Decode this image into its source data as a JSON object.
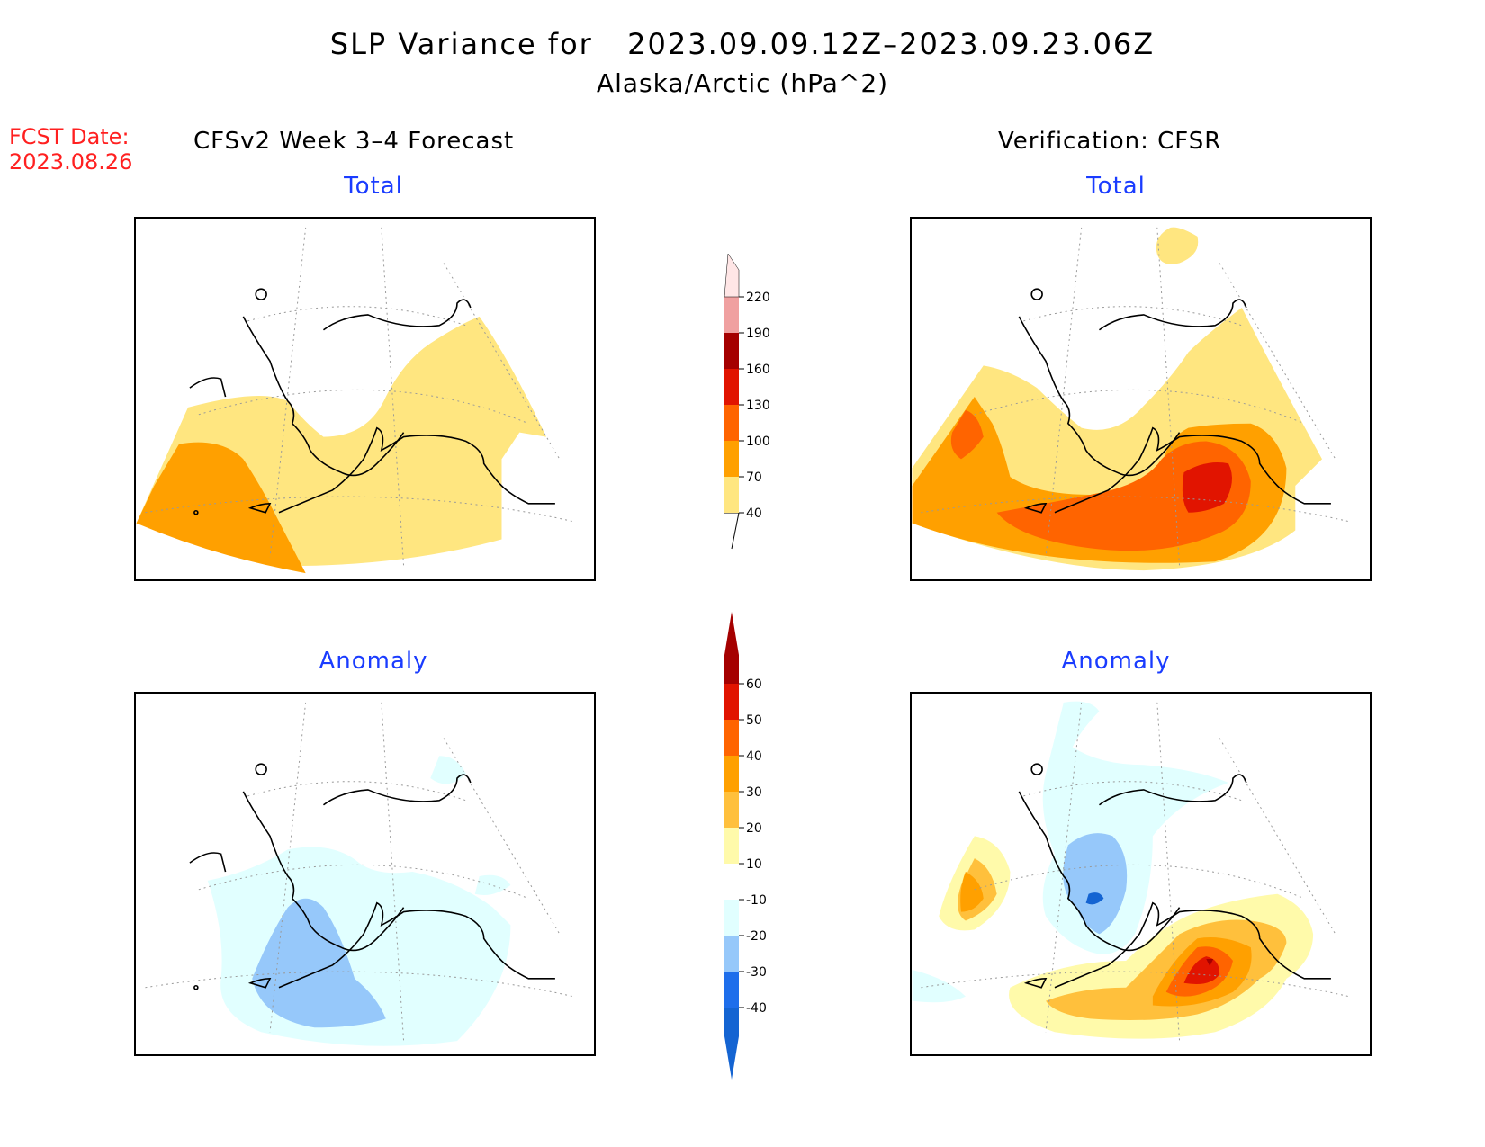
{
  "title": {
    "line1_prefix": "SLP Variance for",
    "line1_dates": "2023.09.09.12Z–2023.09.23.06Z",
    "line2": "Alaska/Arctic (hPa^2)"
  },
  "fcst_date": {
    "label": "FCST Date:",
    "value": "2023.08.26"
  },
  "left_header": "CFSv2 Week 3–4 Forecast",
  "right_header": "Verification: CFSR",
  "panels": {
    "forecast_total_title": "Total",
    "verif_total_title": "Total",
    "forecast_anom_title": "Anomaly",
    "verif_anom_title": "Anomaly"
  },
  "colorbar_total": {
    "ticks": [
      "40",
      "70",
      "100",
      "130",
      "160",
      "190",
      "220"
    ],
    "colors": [
      "#ffe680",
      "#ffa000",
      "#ff6400",
      "#e11400",
      "#a50000",
      "#f0a0a0",
      "#ffe6e6"
    ]
  },
  "colorbar_anomaly": {
    "ticks": [
      "-40",
      "-30",
      "-20",
      "-10",
      "10",
      "20",
      "30",
      "40",
      "50",
      "60"
    ],
    "colors": [
      "#1464d2",
      "#1e6eeb",
      "#96c8fa",
      "#e1ffff",
      "#ffffff",
      "#fffaaa",
      "#ffc03c",
      "#ffa000",
      "#ff6400",
      "#e11400",
      "#a50000"
    ]
  }
}
